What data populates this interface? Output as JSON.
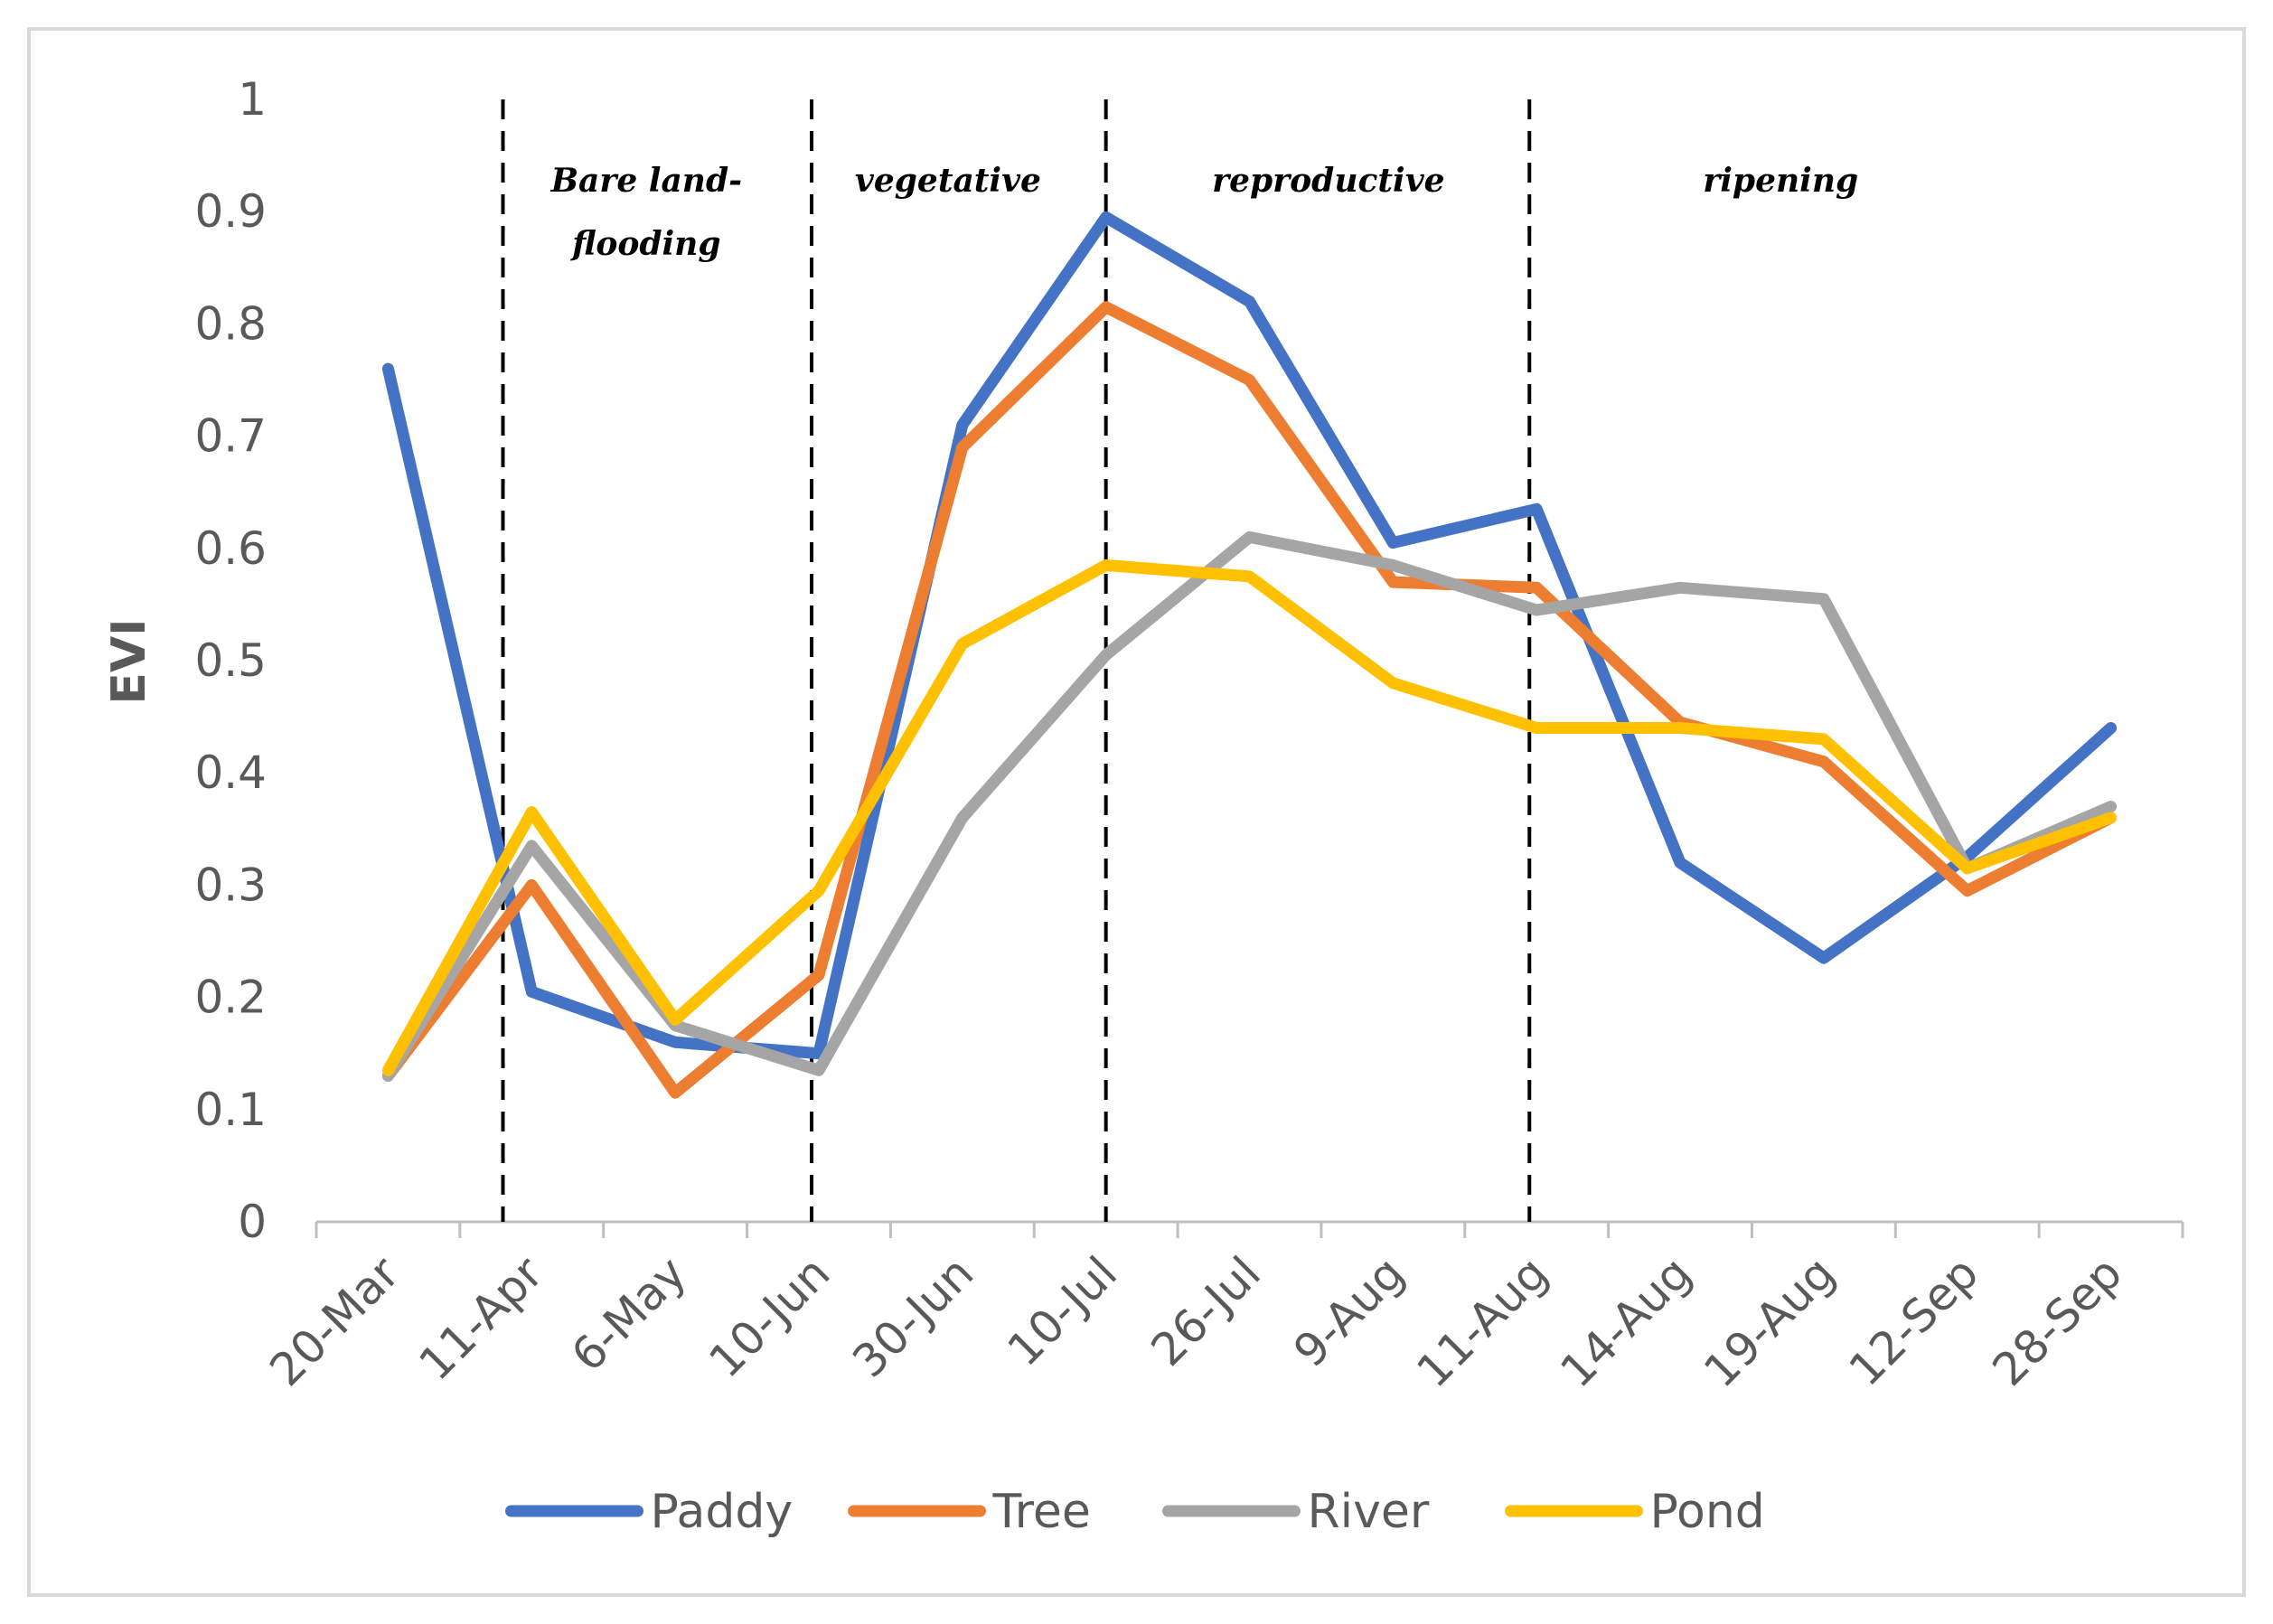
{
  "chart_data": {
    "type": "line",
    "title": "",
    "xlabel": "",
    "ylabel": "EVI",
    "ylim": [
      0,
      1
    ],
    "yticks": [
      0,
      0.1,
      0.2,
      0.3,
      0.4,
      0.5,
      0.6,
      0.7,
      0.8,
      0.9,
      1
    ],
    "ytick_labels": [
      "0",
      "0.1",
      "0.2",
      "0.3",
      "0.4",
      "0.5",
      "0.6",
      "0.7",
      "0.8",
      "0.9",
      "1"
    ],
    "categories": [
      "20-Mar",
      "11-Apr",
      "6-May",
      "10-Jun",
      "30-Jun",
      "10-Jul",
      "26-Jul",
      "9-Aug",
      "11-Aug",
      "14-Aug",
      "19-Aug",
      "12-Sep",
      "28-Sep"
    ],
    "series": [
      {
        "name": "Paddy",
        "color": "#4472c4",
        "values": [
          0.76,
          0.205,
          0.16,
          0.15,
          0.71,
          0.895,
          0.82,
          0.605,
          0.635,
          0.32,
          0.235,
          0.325,
          0.44
        ]
      },
      {
        "name": "Tree",
        "color": "#ed7d31",
        "values": [
          0.13,
          0.3,
          0.115,
          0.22,
          0.69,
          0.815,
          0.75,
          0.57,
          0.565,
          0.445,
          0.41,
          0.295,
          0.36
        ]
      },
      {
        "name": "River",
        "color": "#a5a5a5",
        "values": [
          0.13,
          0.335,
          0.175,
          0.135,
          0.36,
          0.505,
          0.61,
          0.585,
          0.545,
          0.565,
          0.555,
          0.315,
          0.37
        ]
      },
      {
        "name": "Pond",
        "color": "#ffc000",
        "values": [
          0.135,
          0.365,
          0.18,
          0.295,
          0.515,
          0.585,
          0.575,
          0.48,
          0.44,
          0.44,
          0.43,
          0.315,
          0.36
        ]
      }
    ],
    "phase_boundaries": [
      1.3,
      3.45,
      5.5,
      8.45
    ],
    "phases": [
      {
        "lines": [
          "Bare land-",
          "flooding"
        ],
        "x": 2.3
      },
      {
        "lines": [
          "vegetative"
        ],
        "x": 4.4
      },
      {
        "lines": [
          "reproductive"
        ],
        "x": 7.05
      },
      {
        "lines": [
          "ripening"
        ],
        "x": 10.2
      }
    ],
    "legend_position": "bottom",
    "grid": false
  }
}
